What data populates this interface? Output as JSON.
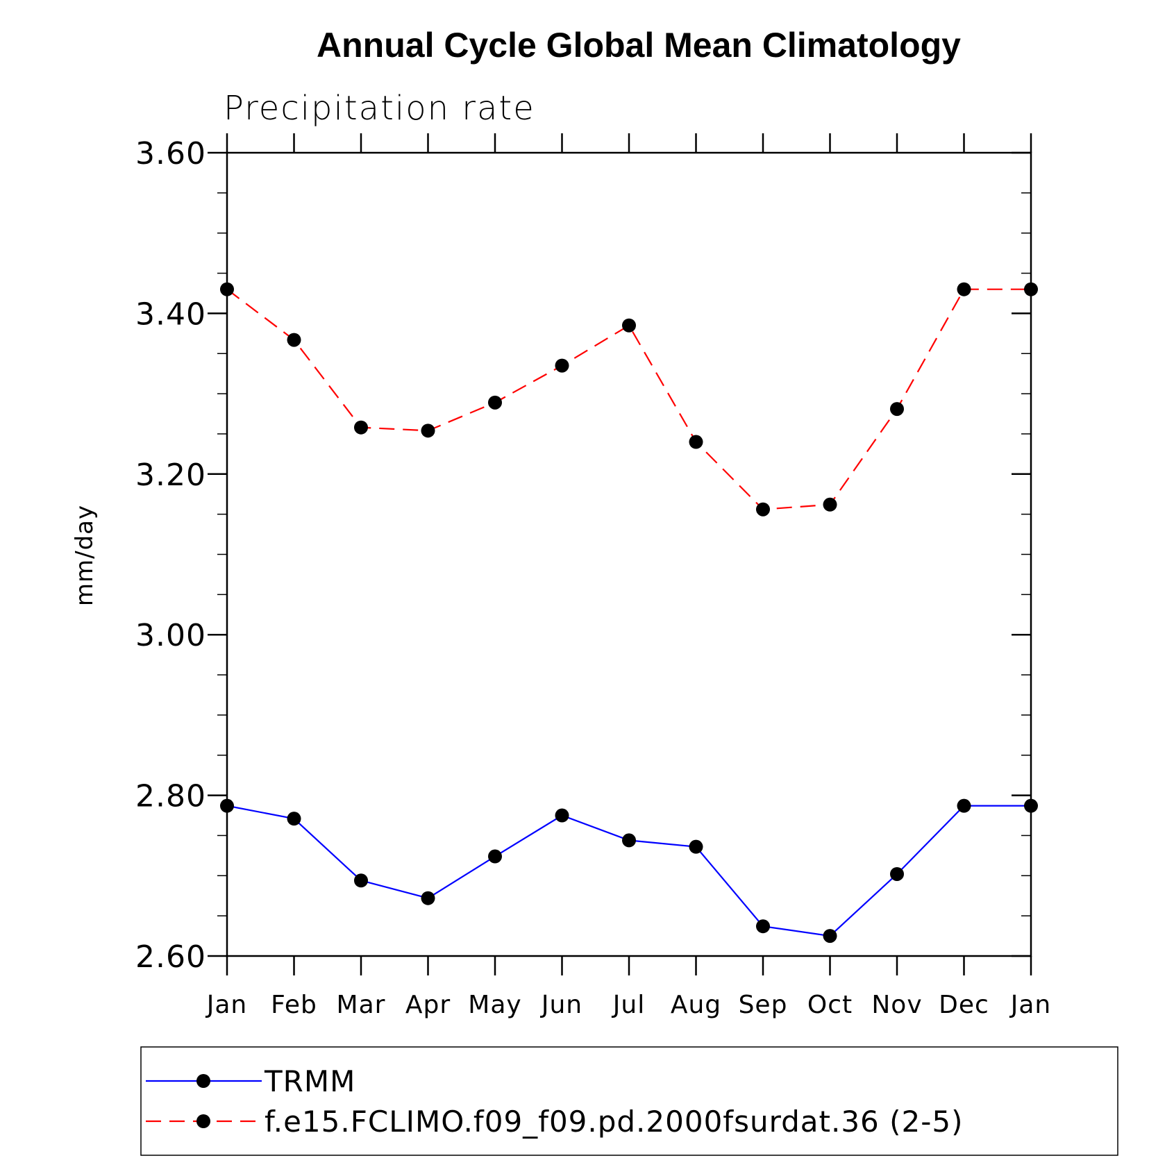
{
  "chart_data": {
    "type": "line",
    "title": "Annual Cycle Global Mean Climatology",
    "subtitle": "Precipitation rate",
    "ylabel": "mm/day",
    "xlabel": "",
    "categories": [
      "Jan",
      "Feb",
      "Mar",
      "Apr",
      "May",
      "Jun",
      "Jul",
      "Aug",
      "Sep",
      "Oct",
      "Nov",
      "Dec",
      "Jan"
    ],
    "ylim": [
      2.6,
      3.6
    ],
    "yticks": [
      "2.60",
      "2.80",
      "3.00",
      "3.20",
      "3.40",
      "3.60"
    ],
    "grid": false,
    "legend_position": "bottom",
    "series": [
      {
        "name": "TRMM",
        "color": "#0000ff",
        "line_style": "solid",
        "marker": "filled-circle",
        "values": [
          2.787,
          2.771,
          2.694,
          2.672,
          2.724,
          2.775,
          2.744,
          2.736,
          2.637,
          2.625,
          2.702,
          2.787,
          2.787
        ]
      },
      {
        "name": "f.e15.FCLIMO.f09_f09.pd.2000fsurdat.36 (2-5)",
        "color": "#ff0000",
        "line_style": "dashed",
        "marker": "filled-circle",
        "values": [
          3.43,
          3.367,
          3.258,
          3.254,
          3.289,
          3.335,
          3.385,
          3.24,
          3.156,
          3.162,
          3.281,
          3.43,
          3.43
        ]
      }
    ],
    "marker_color": "#000000"
  }
}
